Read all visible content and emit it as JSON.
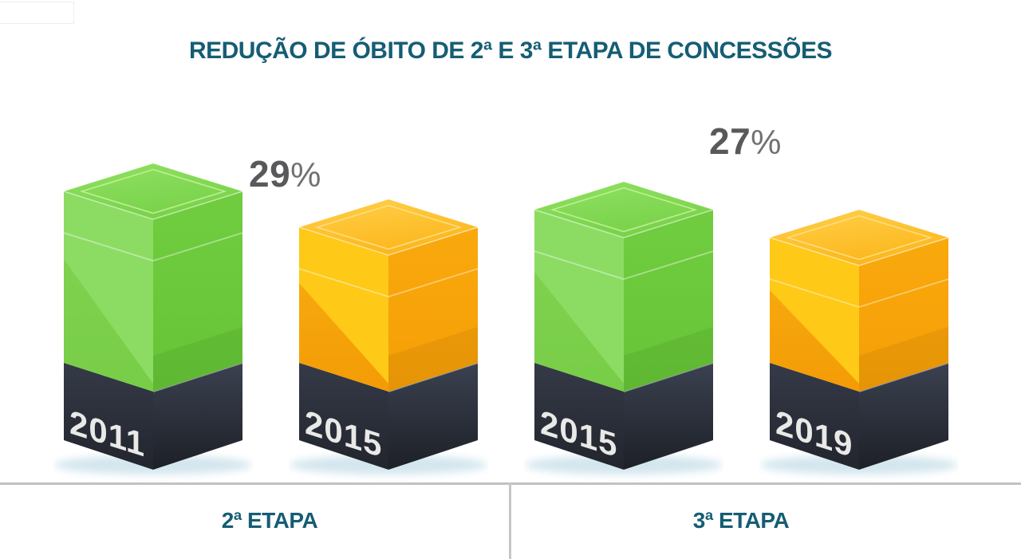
{
  "title": "REDUÇÃO DE ÓBITO DE 2ª E 3ª ETAPA DE CONCESSÕES",
  "colors": {
    "title_teal": "#155d74",
    "percent_gray": "#59595b",
    "green_face": "#80d351",
    "orange_face": "#f9ad10",
    "base_charcoal": "#2b2f3a",
    "year_text": "#e9e9e7",
    "divider_gray": "#c2c2c2",
    "shadow_blue": "#d3e6ee"
  },
  "chart_data": {
    "type": "bar",
    "title": "REDUÇÃO DE ÓBITO DE 2ª E 3ª ETAPA DE CONCESSÕES",
    "style": "3D pictorial columns on dark bases, no numeric axis, no gridlines",
    "legend_position": "none",
    "groups": [
      {
        "label": "2ª ETAPA",
        "reduction_value": "29",
        "reduction_unit": "%",
        "bars": [
          {
            "year": "2011",
            "color": "green",
            "relative_height": 1.0
          },
          {
            "year": "2015",
            "color": "orange",
            "relative_height": 0.82
          }
        ]
      },
      {
        "label": "3ª ETAPA",
        "reduction_value": "27",
        "reduction_unit": "%",
        "bars": [
          {
            "year": "2015",
            "color": "green",
            "relative_height": 0.91
          },
          {
            "year": "2019",
            "color": "orange",
            "relative_height": 0.77
          }
        ]
      }
    ]
  }
}
